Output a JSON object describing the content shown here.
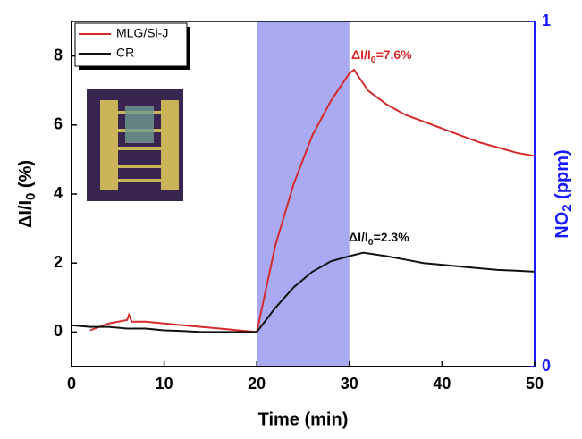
{
  "chart_data": {
    "type": "line",
    "xlabel": "Time (min)",
    "ylabel": {
      "main": "ΔI/I",
      "sub": "0",
      "after": " (%)"
    },
    "y2label": {
      "main": "NO",
      "sub": "2",
      "after": " (ppm)"
    },
    "y2color": "#1a1aff",
    "xlim": [
      0,
      50
    ],
    "xticks": [
      0,
      10,
      20,
      30,
      40,
      50
    ],
    "ylim": [
      -1,
      9
    ],
    "yticks": [
      0,
      2,
      4,
      6,
      8
    ],
    "y2lim": [
      0,
      1
    ],
    "y2ticks": [
      0,
      1
    ],
    "exposure": {
      "x": [
        20,
        30
      ],
      "value": 1,
      "axis": "y2",
      "color": "#aaaaf2"
    },
    "series": [
      {
        "name": "MLG/Si-J",
        "color": "#d42a2a",
        "x": [
          2,
          4,
          6,
          6.2,
          6.5,
          8,
          10,
          12,
          14,
          16,
          18,
          20,
          22,
          24,
          26,
          28,
          30,
          30.5,
          32,
          34,
          36,
          38,
          40,
          42,
          44,
          46,
          48,
          50
        ],
        "values": [
          0.05,
          0.25,
          0.35,
          0.5,
          0.3,
          0.3,
          0.25,
          0.2,
          0.15,
          0.1,
          0.05,
          0.0,
          2.5,
          4.3,
          5.7,
          6.7,
          7.5,
          7.6,
          7.0,
          6.6,
          6.3,
          6.1,
          5.9,
          5.7,
          5.5,
          5.35,
          5.2,
          5.1
        ],
        "annotation": {
          "main": "ΔI/I",
          "sub": "0",
          "after": "=7.6%"
        }
      },
      {
        "name": "CR",
        "color": "#111111",
        "x": [
          0,
          2,
          4,
          6,
          8,
          10,
          12,
          14,
          16,
          18,
          20,
          22,
          24,
          26,
          28,
          30,
          31.5,
          34,
          36,
          38,
          40,
          42,
          44,
          46,
          48,
          50
        ],
        "values": [
          0.2,
          0.15,
          0.15,
          0.1,
          0.1,
          0.05,
          0.03,
          0.0,
          0.0,
          0.0,
          0.0,
          0.7,
          1.3,
          1.75,
          2.05,
          2.2,
          2.3,
          2.2,
          2.1,
          2.0,
          1.95,
          1.9,
          1.85,
          1.8,
          1.78,
          1.75
        ],
        "annotation": {
          "main": "ΔI/I",
          "sub": "0",
          "after": "=2.3%"
        }
      }
    ]
  }
}
